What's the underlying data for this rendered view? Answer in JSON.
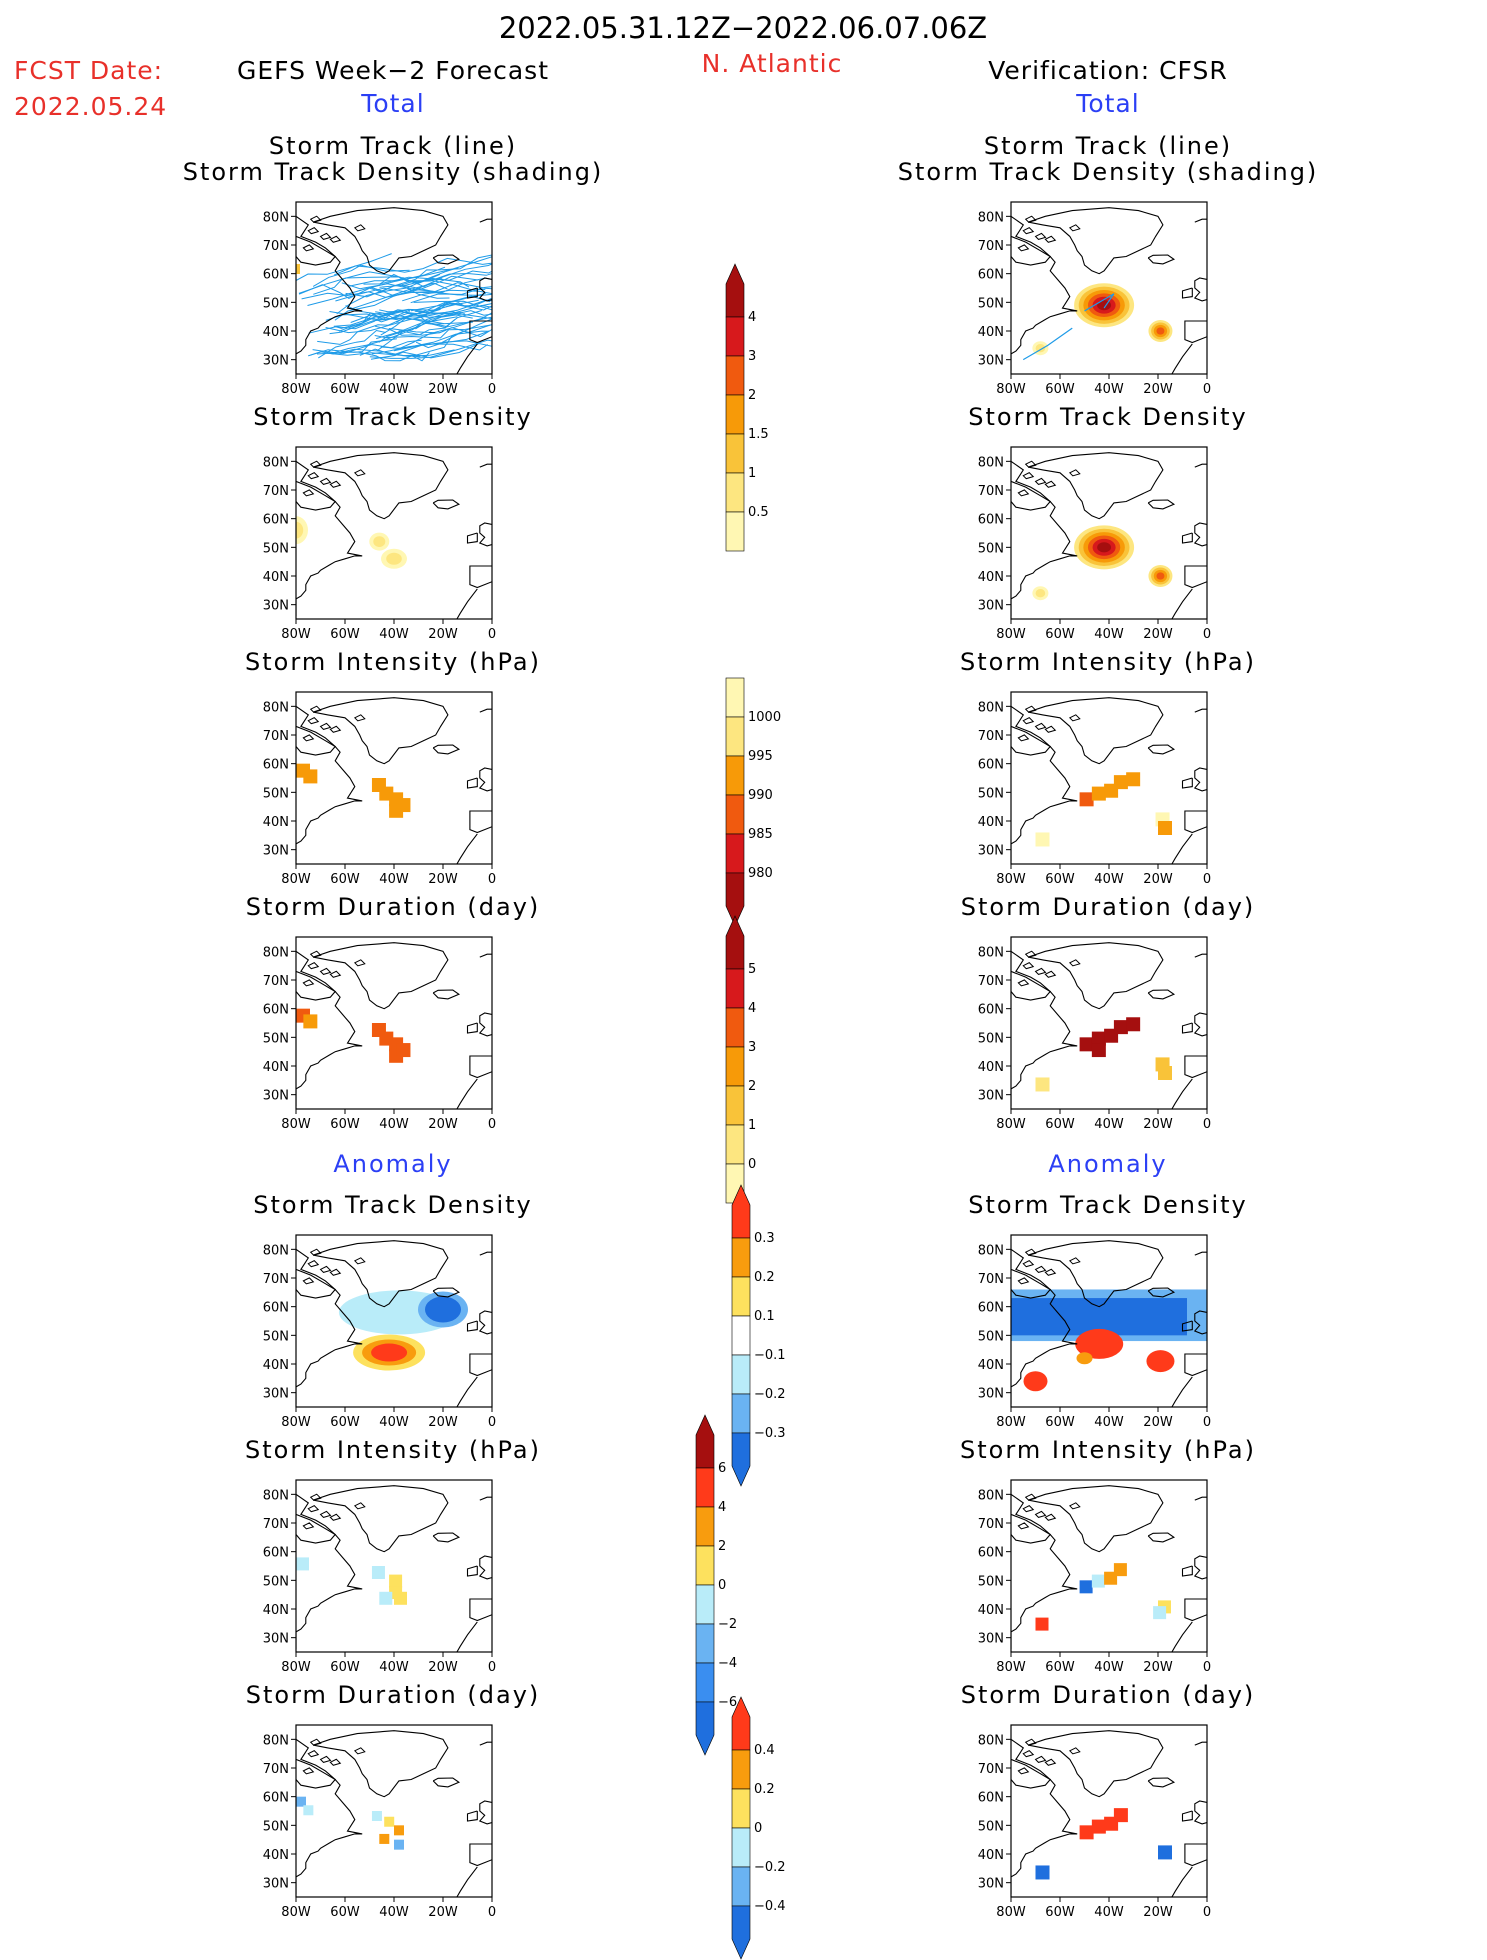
{
  "header": {
    "date_range": "2022.05.31.12Z−2022.06.07.06Z",
    "fcst_label": "FCST Date:",
    "fcst_date": "2022.05.24",
    "left_title": "GEFS Week−2 Forecast",
    "region": "N. Atlantic",
    "right_title": "Verification: CFSR",
    "left_subtitle": "Total",
    "right_subtitle": "Total"
  },
  "sections": {
    "anomaly_left": "Anomaly",
    "anomaly_right": "Anomaly"
  },
  "panel_titles": {
    "track_line": "Storm Track (line)",
    "track_density_shading": "Storm Track Density (shading)",
    "track_density": "Storm Track Density",
    "intensity": "Storm Intensity (hPa)",
    "duration": "Storm Duration (day)"
  },
  "axes": {
    "lat_labels": [
      "80N",
      "70N",
      "60N",
      "50N",
      "40N",
      "30N"
    ],
    "lon_labels": [
      "80W",
      "60W",
      "40W",
      "20W",
      "0"
    ]
  },
  "colorbars": {
    "density": {
      "labels": [
        "4",
        "3",
        "2",
        "1.5",
        "1",
        "0.5"
      ],
      "colors": [
        "#a50f0f",
        "#d7191c",
        "#f05a0f",
        "#f79a08",
        "#f9c339",
        "#fde680",
        "#fff7b3"
      ]
    },
    "intensity": {
      "labels": [
        "1000",
        "995",
        "990",
        "985",
        "980"
      ],
      "colors": [
        "#fff7b3",
        "#fde680",
        "#f79a08",
        "#f05a0f",
        "#d7191c",
        "#a50f0f"
      ]
    },
    "duration": {
      "labels": [
        "5",
        "4",
        "3",
        "2",
        "1",
        "0"
      ],
      "colors": [
        "#a50f0f",
        "#d7191c",
        "#f05a0f",
        "#f79a08",
        "#f9c339",
        "#fde680",
        "#fff7b3"
      ]
    },
    "anom_density": {
      "labels": [
        "0.3",
        "0.2",
        "0.1",
        "−0.1",
        "−0.2",
        "−0.3"
      ],
      "colors": [
        "#ff3a1a",
        "#f89c0e",
        "#fde15e",
        "#ffffff",
        "#b9ecf9",
        "#6ab3f2",
        "#1f6fde"
      ]
    },
    "anom_intensity": {
      "labels": [
        "6",
        "4",
        "2",
        "0",
        "−2",
        "−4",
        "−6"
      ],
      "colors": [
        "#a50f0f",
        "#ff3a1a",
        "#f89c0e",
        "#fde15e",
        "#b9ecf9",
        "#6ab3f2",
        "#3a8ef0",
        "#1f6fde"
      ]
    },
    "anom_duration": {
      "labels": [
        "0.4",
        "0.2",
        "0",
        "−0.2",
        "−0.4"
      ],
      "colors": [
        "#ff3a1a",
        "#f89c0e",
        "#fde15e",
        "#b9ecf9",
        "#6ab3f2",
        "#1f6fde"
      ]
    }
  }
}
